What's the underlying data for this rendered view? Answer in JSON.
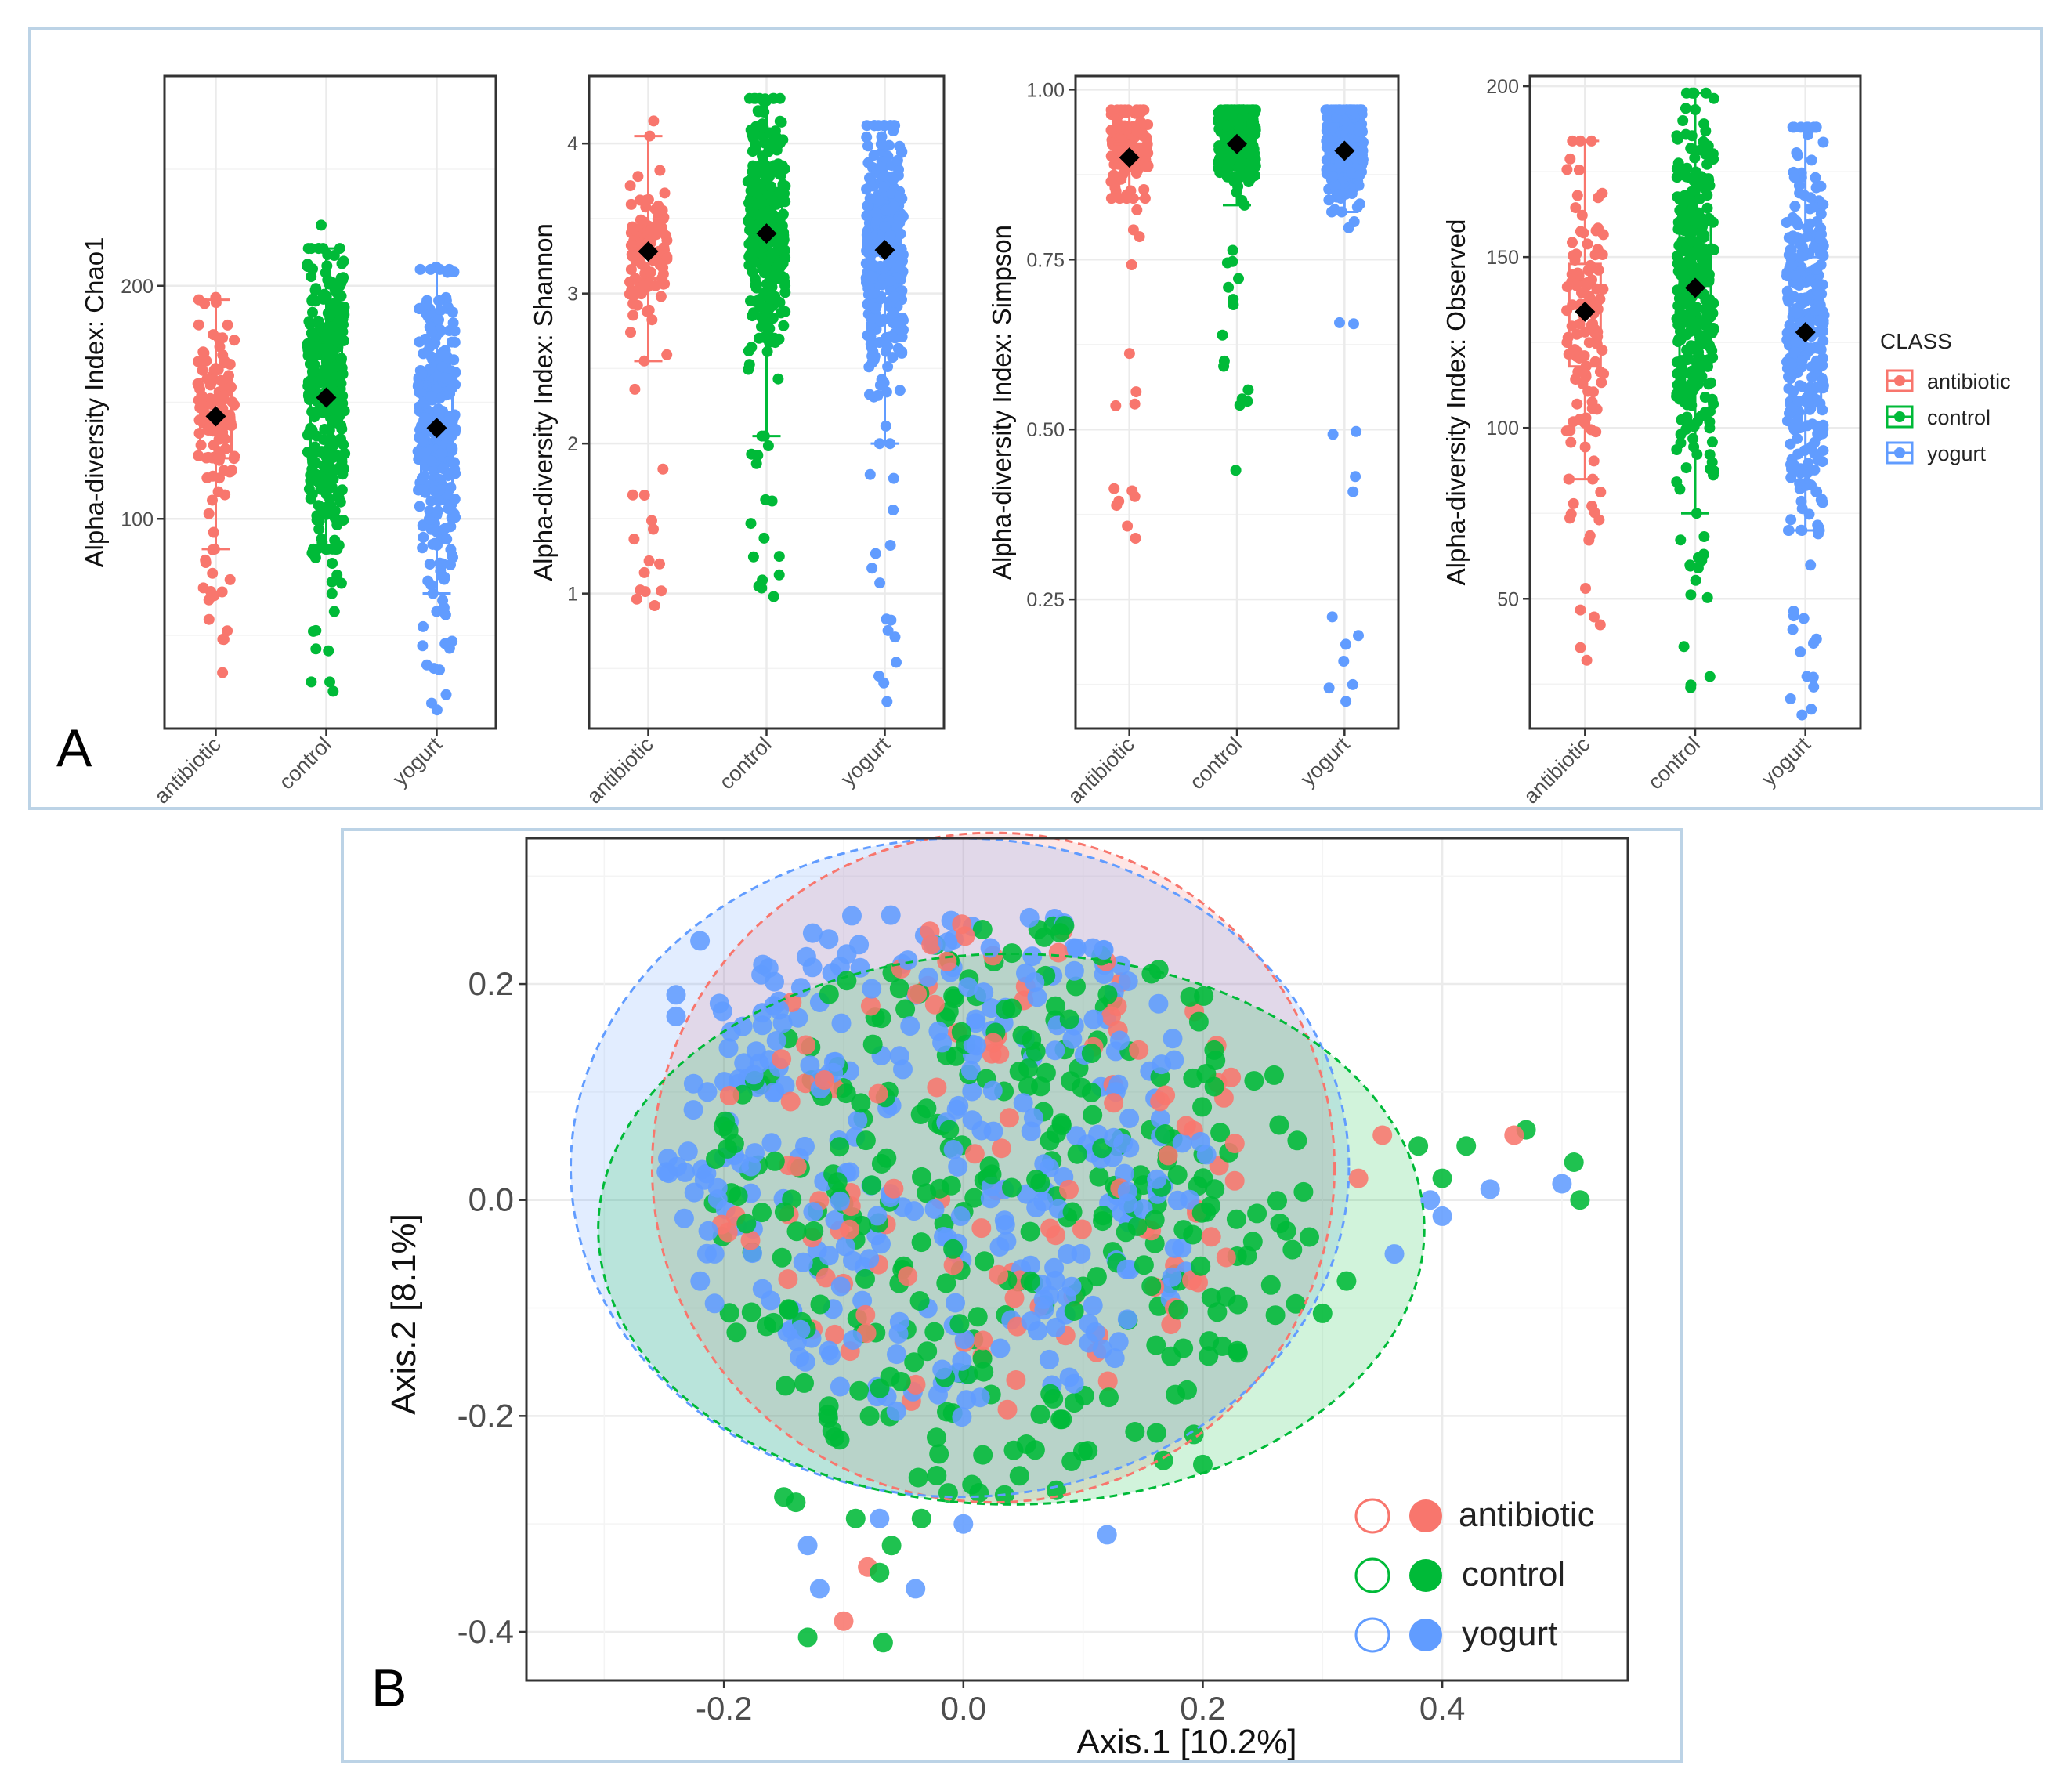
{
  "colors": {
    "antibiotic": "#F8766D",
    "control": "#00BA38",
    "yogurt": "#619CFF",
    "frame": "#bcd3e6"
  },
  "panel_a": {
    "letter": "A",
    "categories": [
      "antibiotic",
      "control",
      "yogurt"
    ],
    "legend": {
      "title": "CLASS",
      "items": [
        "antibiotic",
        "control",
        "yogurt"
      ]
    }
  },
  "panel_b": {
    "letter": "B",
    "legend_items": [
      "antibiotic",
      "control",
      "yogurt"
    ]
  },
  "chart_data": [
    {
      "type": "box",
      "title": "",
      "ylabel": "Alpha-diversity Index: Chao1",
      "xlabel": "",
      "categories": [
        "antibiotic",
        "control",
        "yogurt"
      ],
      "ylim": [
        10,
        290
      ],
      "yticks": [
        100,
        200
      ],
      "series": [
        {
          "name": "antibiotic",
          "mean": 144,
          "q1": 126,
          "median": 146,
          "q3": 160,
          "whisker_low": 87,
          "whisker_high": 194,
          "min": 34,
          "max": 195
        },
        {
          "name": "control",
          "mean": 152,
          "q1": 127,
          "median": 153,
          "q3": 174,
          "whisker_low": 87,
          "whisker_high": 216,
          "min": 26,
          "max": 226
        },
        {
          "name": "yogurt",
          "mean": 139,
          "q1": 115,
          "median": 139,
          "q3": 161,
          "whisker_low": 68,
          "whisker_high": 207,
          "min": 18,
          "max": 208
        }
      ]
    },
    {
      "type": "box",
      "title": "",
      "ylabel": "Alpha-diversity Index: Shannon",
      "xlabel": "",
      "categories": [
        "antibiotic",
        "control",
        "yogurt"
      ],
      "ylim": [
        0.1,
        4.45
      ],
      "yticks": [
        1,
        2,
        3,
        4
      ],
      "series": [
        {
          "name": "antibiotic",
          "mean": 3.28,
          "q1": 3.1,
          "median": 3.3,
          "q3": 3.45,
          "whisker_low": 2.55,
          "whisker_high": 4.05,
          "min": 0.92,
          "max": 4.15
        },
        {
          "name": "control",
          "mean": 3.4,
          "q1": 3.15,
          "median": 3.42,
          "q3": 3.7,
          "whisker_low": 2.05,
          "whisker_high": 4.3,
          "min": 0.98,
          "max": 4.3
        },
        {
          "name": "yogurt",
          "mean": 3.29,
          "q1": 3.0,
          "median": 3.3,
          "q3": 3.62,
          "whisker_low": 2.0,
          "whisker_high": 4.12,
          "min": 0.28,
          "max": 4.12
        }
      ]
    },
    {
      "type": "box",
      "title": "",
      "ylabel": "Alpha-diversity Index: Simpson",
      "xlabel": "",
      "categories": [
        "antibiotic",
        "control",
        "yogurt"
      ],
      "ylim": [
        0.06,
        1.02
      ],
      "yticks": [
        0.25,
        0.5,
        0.75,
        1.0
      ],
      "yticklabels": [
        "0.25",
        "0.50",
        "0.75",
        "1.00"
      ],
      "series": [
        {
          "name": "antibiotic",
          "mean": 0.9,
          "q1": 0.89,
          "median": 0.92,
          "q3": 0.95,
          "whisker_low": 0.84,
          "whisker_high": 0.97,
          "min": 0.34,
          "max": 0.97
        },
        {
          "name": "control",
          "mean": 0.92,
          "q1": 0.9,
          "median": 0.93,
          "q3": 0.95,
          "whisker_low": 0.83,
          "whisker_high": 0.97,
          "min": 0.44,
          "max": 0.97
        },
        {
          "name": "yogurt",
          "mean": 0.91,
          "q1": 0.89,
          "median": 0.925,
          "q3": 0.95,
          "whisker_low": 0.82,
          "whisker_high": 0.97,
          "min": 0.1,
          "max": 0.97
        }
      ]
    },
    {
      "type": "box",
      "title": "",
      "ylabel": "Alpha-diversity Index: Observed",
      "xlabel": "",
      "categories": [
        "antibiotic",
        "control",
        "yogurt"
      ],
      "ylim": [
        12,
        203
      ],
      "yticks": [
        50,
        100,
        150,
        200
      ],
      "series": [
        {
          "name": "antibiotic",
          "mean": 134,
          "q1": 118,
          "median": 135,
          "q3": 148,
          "whisker_low": 85,
          "whisker_high": 184,
          "min": 32,
          "max": 184
        },
        {
          "name": "control",
          "mean": 141,
          "q1": 121,
          "median": 142,
          "q3": 160,
          "whisker_low": 75,
          "whisker_high": 198,
          "min": 24,
          "max": 198
        },
        {
          "name": "yogurt",
          "mean": 128,
          "q1": 109,
          "median": 128,
          "q3": 150,
          "whisker_low": 70,
          "whisker_high": 188,
          "min": 16,
          "max": 188
        }
      ]
    },
    {
      "type": "scatter",
      "title": "",
      "xlabel": "Axis.1   [10.2%]",
      "ylabel": "Axis.2   [8.1%]",
      "xlim": [
        -0.365,
        0.555
      ],
      "ylim": [
        -0.445,
        0.335
      ],
      "xticks": [
        -0.2,
        0.0,
        0.2,
        0.4
      ],
      "xticklabels": [
        "-0.2",
        "0.0",
        "0.2",
        "0.4"
      ],
      "yticks": [
        -0.4,
        -0.2,
        0.0,
        0.2
      ],
      "yticklabels": [
        "-0.4",
        "-0.2",
        "0.0",
        "0.2"
      ],
      "ellipses": [
        {
          "name": "antibiotic",
          "cx": 0.025,
          "cy": 0.03,
          "rx": 0.285,
          "ry": 0.31
        },
        {
          "name": "yogurt",
          "cx": -0.003,
          "cy": 0.03,
          "rx": 0.325,
          "ry": 0.305
        },
        {
          "name": "control",
          "cx": 0.04,
          "cy": -0.027,
          "rx": 0.345,
          "ry": 0.255
        }
      ],
      "series": [
        {
          "name": "antibiotic",
          "n_points": 120,
          "center": [
            0.02,
            0.03
          ],
          "spread": [
            0.1,
            0.085
          ],
          "outliers": [
            [
              -0.1,
              -0.39
            ],
            [
              -0.08,
              -0.34
            ],
            [
              0.35,
              0.06
            ],
            [
              0.46,
              0.06
            ],
            [
              0.33,
              0.02
            ]
          ]
        },
        {
          "name": "control",
          "n_points": 330,
          "center": [
            0.04,
            -0.01
          ],
          "spread": [
            0.11,
            0.1
          ],
          "outliers": [
            [
              -0.13,
              -0.405
            ],
            [
              -0.067,
              -0.41
            ],
            [
              -0.14,
              -0.28
            ],
            [
              -0.15,
              -0.275
            ],
            [
              -0.09,
              -0.295
            ],
            [
              -0.06,
              -0.32
            ],
            [
              -0.07,
              -0.345
            ],
            [
              -0.035,
              -0.295
            ],
            [
              0.1,
              -0.08
            ],
            [
              0.2,
              -0.245
            ],
            [
              0.3,
              -0.105
            ],
            [
              0.32,
              -0.075
            ],
            [
              0.38,
              0.05
            ],
            [
              0.42,
              0.05
            ],
            [
              0.47,
              0.065
            ],
            [
              0.51,
              0.035
            ],
            [
              0.515,
              0.0
            ],
            [
              0.4,
              0.02
            ]
          ]
        },
        {
          "name": "yogurt",
          "n_points": 330,
          "center": [
            -0.02,
            0.04
          ],
          "spread": [
            0.1,
            0.09
          ],
          "outliers": [
            [
              -0.22,
              0.24
            ],
            [
              -0.24,
              0.19
            ],
            [
              -0.24,
              0.17
            ],
            [
              -0.13,
              -0.32
            ],
            [
              -0.12,
              -0.36
            ],
            [
              -0.07,
              -0.295
            ],
            [
              -0.04,
              -0.36
            ],
            [
              0.0,
              -0.3
            ],
            [
              0.12,
              -0.31
            ],
            [
              0.39,
              0.0
            ],
            [
              0.4,
              -0.015
            ],
            [
              0.44,
              0.01
            ],
            [
              0.5,
              0.015
            ],
            [
              0.36,
              -0.05
            ]
          ]
        }
      ]
    }
  ]
}
